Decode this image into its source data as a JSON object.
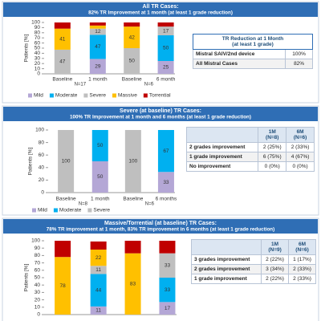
{
  "chart_data": [
    {
      "type": "bar",
      "stacked": true,
      "title": "All TR Cases:",
      "subtitle": "82% TR Improvement at 1 month (at least 1 grade reduction)",
      "ylabel": "Patients [%]",
      "categories": [
        "Baseline",
        "1 month",
        "Baseline",
        "6 month"
      ],
      "groups": [
        "N=17",
        "N=6"
      ],
      "ylim": [
        0,
        100
      ],
      "yticks": [
        0,
        10,
        20,
        30,
        40,
        50,
        60,
        70,
        80,
        90,
        100
      ],
      "grid": false,
      "legend": true,
      "series": [
        {
          "name": "Mild",
          "color": "#b4a7d6",
          "values": [
            0,
            29,
            0,
            25
          ]
        },
        {
          "name": "Moderate",
          "color": "#00b0f0",
          "values": [
            0,
            47,
            0,
            50
          ]
        },
        {
          "name": "Severe",
          "color": "#bfbfbf",
          "values": [
            47,
            12,
            50,
            17
          ]
        },
        {
          "name": "Massive",
          "color": "#ffc000",
          "values": [
            41,
            6,
            42,
            0
          ]
        },
        {
          "name": "Torrential",
          "color": "#c00000",
          "values": [
            12,
            6,
            8,
            8
          ],
          "data_labels": false
        }
      ]
    },
    {
      "type": "bar",
      "stacked": true,
      "title": "Severe (at baseline) TR Cases:",
      "subtitle": "100% TR Improvement at 1 month and 6 months (at least 1 grade reduction)",
      "ylabel": "Patients [%]",
      "categories": [
        "Baseline",
        "1 month",
        "Baseline",
        "6 months"
      ],
      "groups": [
        "N=8",
        "N=6"
      ],
      "ylim": [
        0,
        100
      ],
      "yticks": [
        0,
        20,
        40,
        60,
        80,
        100
      ],
      "grid": false,
      "legend": true,
      "series": [
        {
          "name": "Mild",
          "color": "#b4a7d6",
          "values": [
            0,
            50,
            0,
            33
          ]
        },
        {
          "name": "Moderate",
          "color": "#00b0f0",
          "values": [
            0,
            50,
            0,
            67
          ]
        },
        {
          "name": "Severe",
          "color": "#bfbfbf",
          "values": [
            100,
            0,
            100,
            0
          ]
        }
      ]
    },
    {
      "type": "bar",
      "stacked": true,
      "title": "Massive/Torrential (at baseline) TR Cases:",
      "subtitle": "78% TR improvement at 1 month, 83% TR improvement in 6 months (at least 1 grade reduction)",
      "ylabel": "Patients [%]",
      "categories": [
        null,
        null,
        null,
        null
      ],
      "ylim": [
        0,
        100
      ],
      "yticks": [
        0,
        10,
        20,
        30,
        40,
        50,
        60,
        70,
        80,
        90,
        100
      ],
      "grid": false,
      "legend": false,
      "series": [
        {
          "name": "Mild",
          "color": "#b4a7d6",
          "values": [
            0,
            11,
            0,
            17
          ]
        },
        {
          "name": "Moderate",
          "color": "#00b0f0",
          "values": [
            0,
            44,
            0,
            33
          ]
        },
        {
          "name": "Severe",
          "color": "#bfbfbf",
          "values": [
            0,
            11,
            0,
            33
          ]
        },
        {
          "name": "Massive",
          "color": "#ffc000",
          "values": [
            78,
            22,
            83,
            0
          ]
        },
        {
          "name": "Torrential",
          "color": "#c00000",
          "values": [
            22,
            11,
            17,
            17
          ],
          "data_labels": false
        }
      ]
    }
  ],
  "tables": [
    {
      "title": "TR Reduction at 1 Month",
      "subtitle": "(at least 1 grade)",
      "rows": [
        [
          "Mistral SAIV/2nd device",
          "100%"
        ],
        [
          "All Mistral Cases",
          "82%"
        ]
      ]
    },
    {
      "columns": [
        {
          "name": "1M",
          "n": "(N=8)"
        },
        {
          "name": "6M",
          "n": "(N=6)"
        }
      ],
      "rows": [
        [
          "2 grades improvement",
          "2 (25%)",
          "2 (33%)"
        ],
        [
          "1 grade improvement",
          "6 (75%)",
          "4 (67%)"
        ],
        [
          "No improvement",
          "0 (0%)",
          "0 (0%)"
        ]
      ]
    },
    {
      "columns": [
        {
          "name": "1M",
          "n": "(N=9)"
        },
        {
          "name": "6M",
          "n": "(N=6)"
        }
      ],
      "rows": [
        [
          "3 grades improvement",
          "2 (22%)",
          "1 (17%)"
        ],
        [
          "2 grades improvement",
          "3 (34%)",
          "2 (33%)"
        ],
        [
          "1 grade improvement",
          "2 (22%)",
          "2 (33%)"
        ]
      ]
    }
  ]
}
